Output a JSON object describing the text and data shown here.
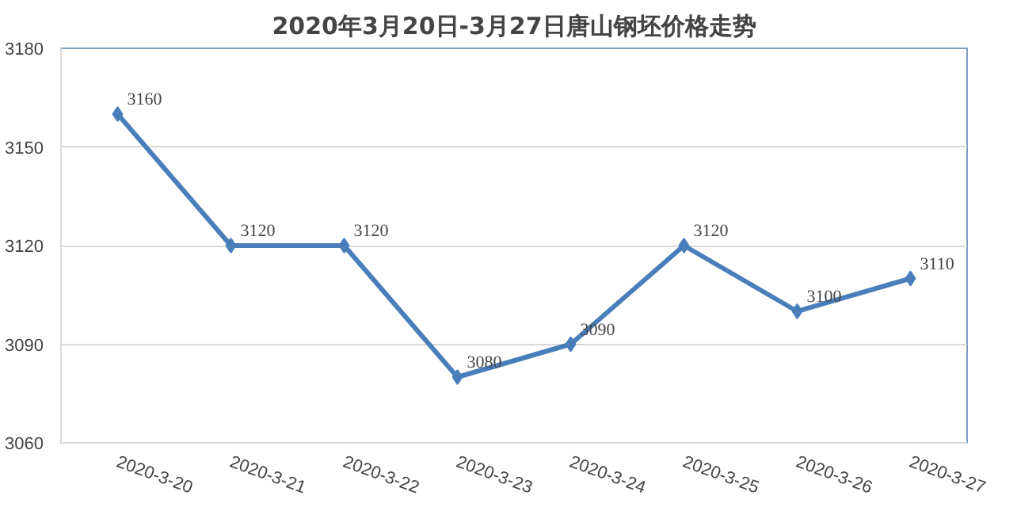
{
  "chart_data": {
    "type": "line",
    "title": "2020年3月20日-3月27日唐山钢坯价格走势",
    "categories": [
      "2020-3-20",
      "2020-3-21",
      "2020-3-22",
      "2020-3-23",
      "2020-3-24",
      "2020-3-25",
      "2020-3-26",
      "2020-3-27"
    ],
    "series": [
      {
        "color": "#4a7ebb",
        "values": [
          3160,
          3120,
          3120,
          3080,
          3090,
          3120,
          3100,
          3110
        ]
      }
    ],
    "ylim": [
      3060,
      3180
    ],
    "yticks": [
      3060,
      3090,
      3120,
      3150,
      3180
    ],
    "grid": "y",
    "marker": "diamond",
    "data_labels": true
  }
}
